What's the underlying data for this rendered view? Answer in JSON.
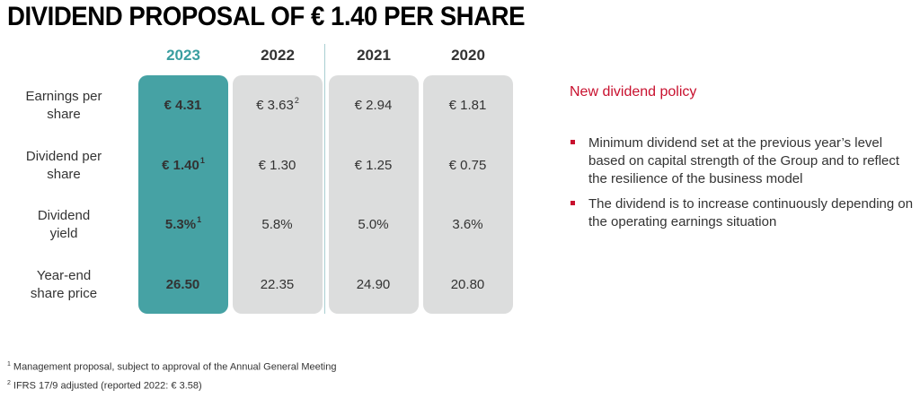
{
  "title": "DIVIDEND PROPOSAL OF € 1.40 PER SHARE",
  "table": {
    "years": [
      "2023",
      "2022",
      "2021",
      "2020"
    ],
    "rows": [
      {
        "label1": "Earnings per",
        "label2": "share",
        "values": [
          {
            "text": "€ 4.31",
            "sup": ""
          },
          {
            "text": "€ 3.63",
            "sup": "2"
          },
          {
            "text": "€ 2.94",
            "sup": ""
          },
          {
            "text": "€ 1.81",
            "sup": ""
          }
        ]
      },
      {
        "label1": "Dividend per",
        "label2": "share",
        "values": [
          {
            "text": "€ 1.40",
            "sup": "1"
          },
          {
            "text": "€ 1.30",
            "sup": ""
          },
          {
            "text": "€ 1.25",
            "sup": ""
          },
          {
            "text": "€ 0.75",
            "sup": ""
          }
        ]
      },
      {
        "label1": "Dividend",
        "label2": "yield",
        "values": [
          {
            "text": "5.3%",
            "sup": "1"
          },
          {
            "text": "5.8%",
            "sup": ""
          },
          {
            "text": "5.0%",
            "sup": ""
          },
          {
            "text": "3.6%",
            "sup": ""
          }
        ]
      },
      {
        "label1": "Year-end",
        "label2": "share price",
        "values": [
          {
            "text": "26.50",
            "sup": ""
          },
          {
            "text": "22.35",
            "sup": ""
          },
          {
            "text": "24.90",
            "sup": ""
          },
          {
            "text": "20.80",
            "sup": ""
          }
        ]
      }
    ]
  },
  "policy": {
    "heading": "New dividend policy",
    "bullets": [
      "Minimum dividend set at the previous year’s level based on capital strength of the Group and to reflect the resilience of the business model",
      "The dividend is to increase continuously depending on the operating earnings situation"
    ]
  },
  "footnotes": [
    {
      "mark": "1",
      "text": "Management proposal, subject to approval of the Annual General Meeting"
    },
    {
      "mark": "2",
      "text": "IFRS 17/9 adjusted (reported 2022: € 3.58)"
    }
  ],
  "colors": {
    "highlight": "#46a2a4",
    "highlight_year": "#3a9ea0",
    "accent_red": "#c8102e",
    "column_grey": "#dcdddd"
  }
}
